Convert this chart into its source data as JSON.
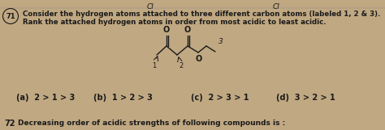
{
  "bg_color": "#c0a882",
  "text_color": "#1a1a1a",
  "question_num": "71",
  "question_text_line1": "Consider the hydrogen atoms attached to three different carbon atoms (labeled 1, 2 & 3).",
  "question_text_line2": "Rank the attached hydrogen atoms in order from most acidic to least acidic.",
  "options": [
    "(a)  2 > 1 > 3",
    "(b)  1 > 2 > 3",
    "(c)  2 > 3 > 1",
    "(d)  3 > 2 > 1"
  ],
  "bottom_label": "72",
  "bottom_text": "Decreasing order of acidic strengths of following compounds is :",
  "top_left_text": "CI",
  "top_right_text": "CI",
  "figsize": [
    4.74,
    1.61
  ],
  "dpi": 100
}
